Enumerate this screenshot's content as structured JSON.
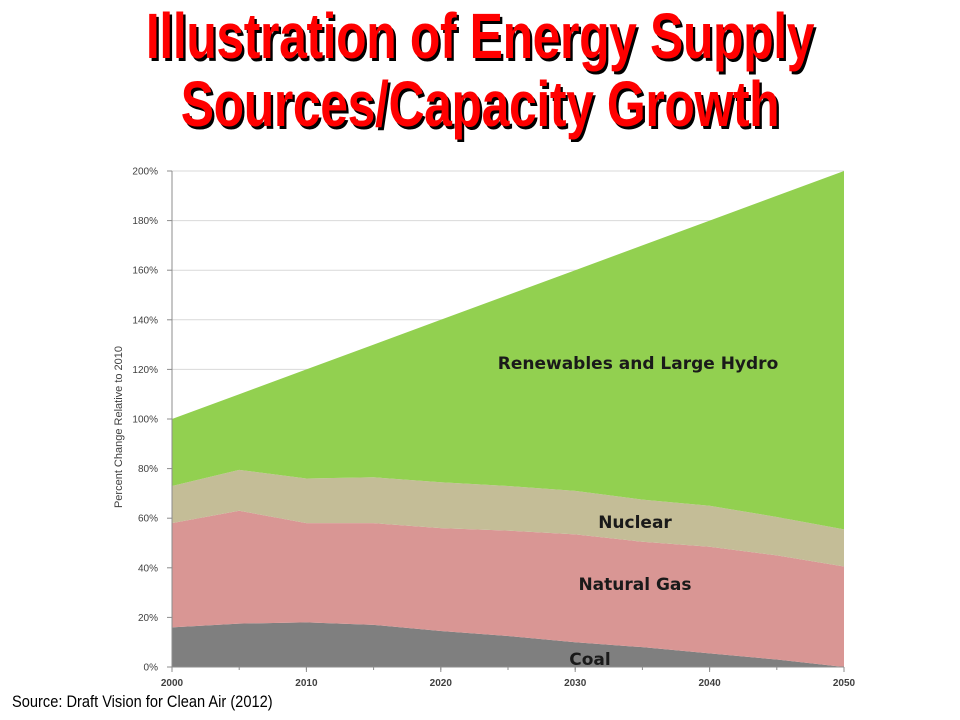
{
  "title": {
    "line1": "Illustration of Energy Supply",
    "line2": "Sources/Capacity Growth"
  },
  "source": "Source: Draft Vision for Clean Air (2012)",
  "colors": {
    "coal": "#7f7f7f",
    "natural_gas": "#d99694",
    "nuclear": "#c4bd97",
    "renewables": "#92d050",
    "title": "#ff0000"
  },
  "chart_data": {
    "type": "area",
    "stacked": true,
    "title": "",
    "xlabel": "",
    "ylabel": "Percent Change Relative to 2010",
    "x": [
      2000,
      2005,
      2010,
      2015,
      2020,
      2025,
      2030,
      2035,
      2040,
      2045,
      2050
    ],
    "xticks": [
      "2000",
      "2010",
      "2020",
      "2030",
      "2040",
      "2050"
    ],
    "yticks": [
      "0%",
      "20%",
      "40%",
      "60%",
      "80%",
      "100%",
      "120%",
      "140%",
      "160%",
      "180%",
      "200%"
    ],
    "ylim": [
      0,
      200
    ],
    "grid": true,
    "legend": "none",
    "series": [
      {
        "name": "Coal",
        "values": [
          16,
          17.5,
          18,
          17,
          14.5,
          12.5,
          10,
          8,
          5.5,
          3,
          0
        ]
      },
      {
        "name": "Natural Gas",
        "values": [
          42,
          45.5,
          40,
          41,
          41.5,
          42.5,
          43.5,
          42.5,
          43,
          42,
          40.5
        ]
      },
      {
        "name": "Nuclear",
        "values": [
          15,
          16.5,
          18,
          18.5,
          18.5,
          18,
          17.5,
          17,
          16.5,
          15.5,
          15
        ]
      },
      {
        "name": "Renewables and Large Hydro",
        "values": [
          27,
          30.5,
          44,
          53.5,
          65.5,
          77,
          89,
          102.5,
          115,
          129.5,
          144.5
        ]
      }
    ]
  }
}
